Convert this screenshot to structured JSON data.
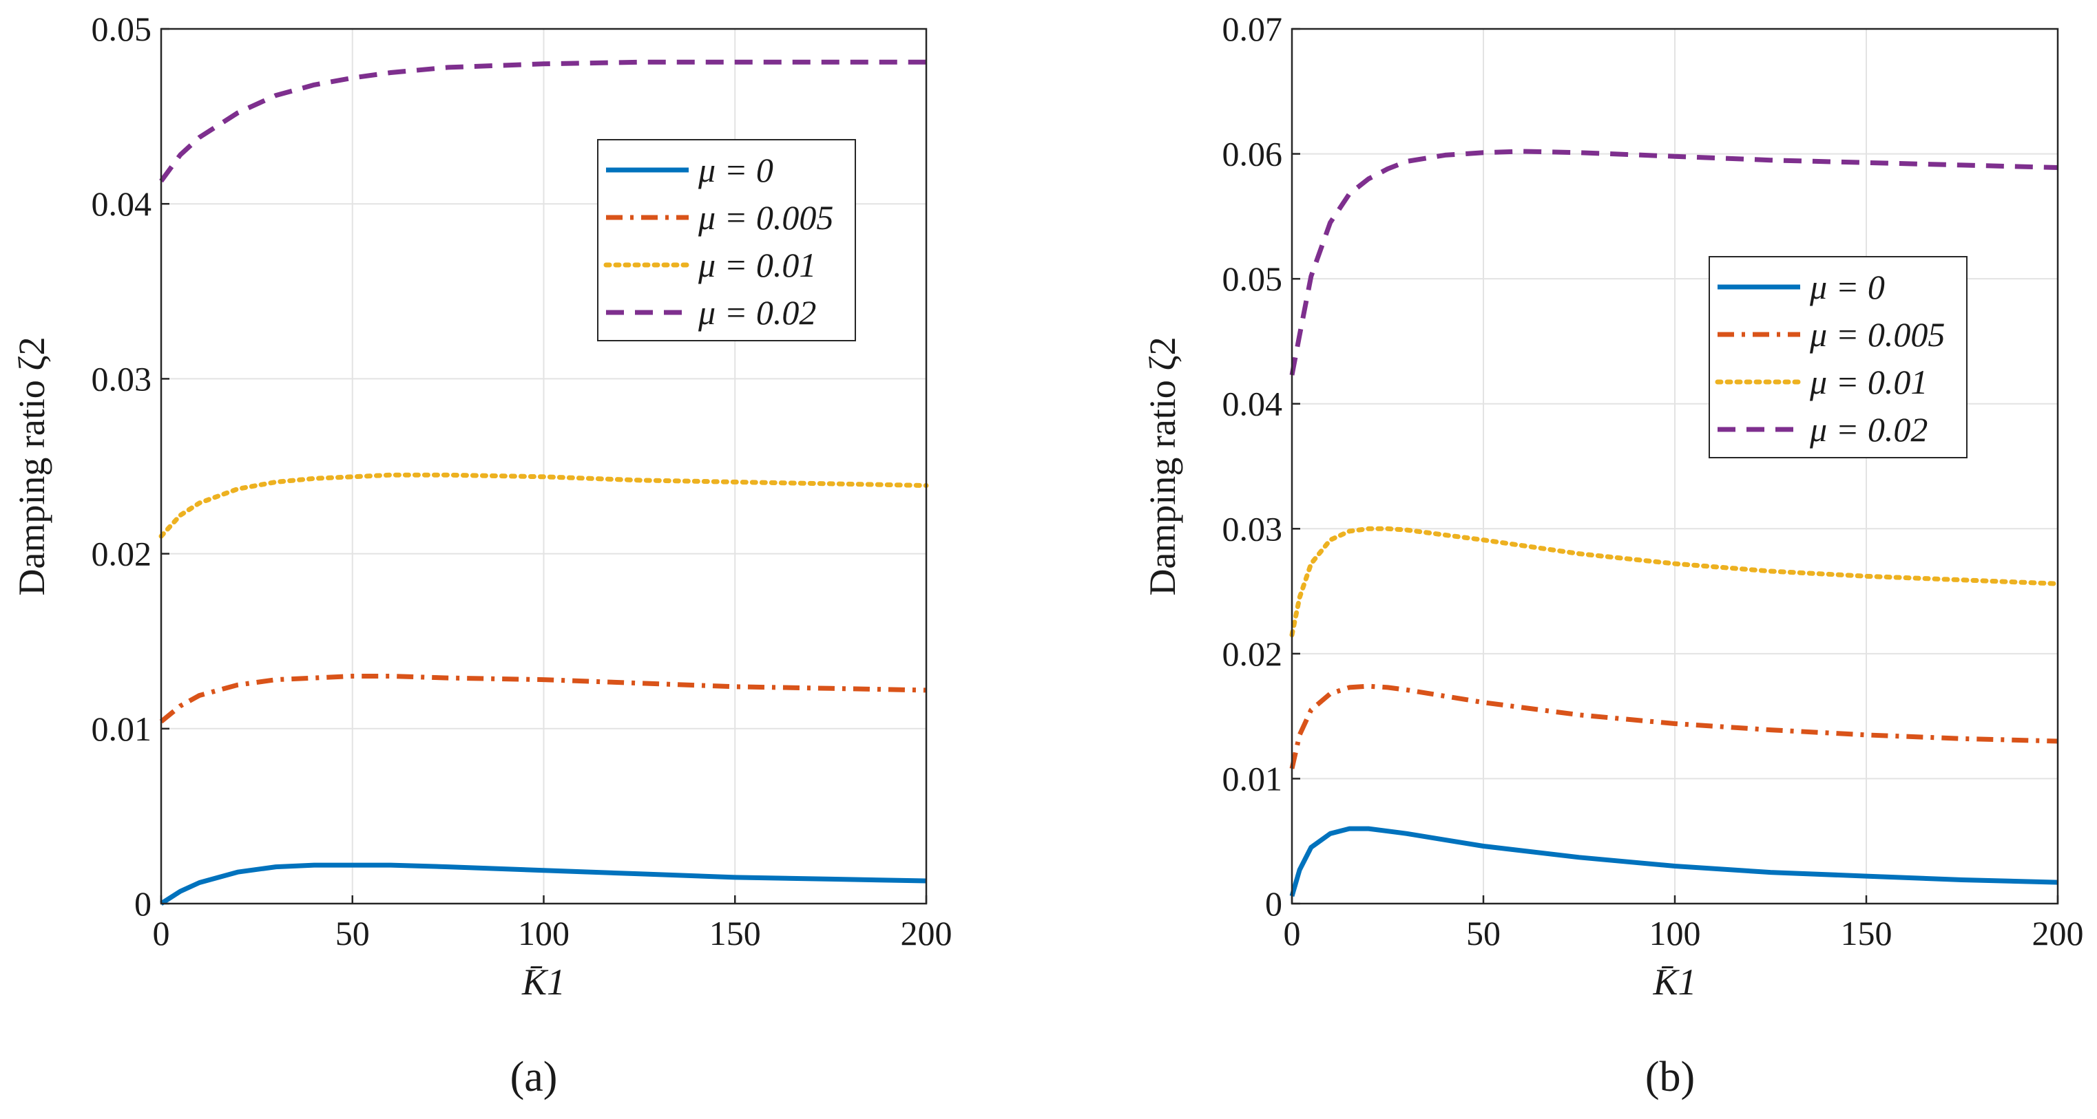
{
  "chart_data": [
    {
      "panel_label": "(a)",
      "type": "line",
      "xlabel": "K̄1",
      "ylabel": "Damping ratio ζ2",
      "xlim": [
        0,
        200
      ],
      "ylim": [
        0,
        0.05
      ],
      "xticks": [
        "0",
        "50",
        "100",
        "150",
        "200"
      ],
      "yticks": [
        "0",
        "0.01",
        "0.02",
        "0.03",
        "0.04",
        "0.05"
      ],
      "grid": true,
      "legend_position": "top-right",
      "series": [
        {
          "name": "μ = 0",
          "color": "#0072bd",
          "style": "solid",
          "x": [
            0,
            5,
            10,
            20,
            30,
            40,
            50,
            60,
            75,
            100,
            125,
            150,
            175,
            200
          ],
          "y": [
            0,
            0.0007,
            0.0012,
            0.0018,
            0.0021,
            0.0022,
            0.0022,
            0.0022,
            0.0021,
            0.0019,
            0.0017,
            0.0015,
            0.0014,
            0.0013
          ]
        },
        {
          "name": "μ = 0.005",
          "color": "#d95319",
          "style": "dashdot",
          "x": [
            0,
            5,
            10,
            20,
            30,
            40,
            50,
            60,
            75,
            100,
            125,
            150,
            175,
            200
          ],
          "y": [
            0.0104,
            0.0113,
            0.0119,
            0.0125,
            0.0128,
            0.0129,
            0.013,
            0.013,
            0.0129,
            0.0128,
            0.0126,
            0.0124,
            0.0123,
            0.0122
          ]
        },
        {
          "name": "μ = 0.01",
          "color": "#edb120",
          "style": "dotted",
          "x": [
            0,
            5,
            10,
            20,
            30,
            40,
            50,
            60,
            75,
            100,
            125,
            150,
            175,
            200
          ],
          "y": [
            0.021,
            0.0222,
            0.0229,
            0.0237,
            0.0241,
            0.0243,
            0.0244,
            0.0245,
            0.0245,
            0.0244,
            0.0242,
            0.0241,
            0.024,
            0.0239
          ]
        },
        {
          "name": "μ = 0.02",
          "color": "#7e2f8e",
          "style": "dashed",
          "x": [
            0,
            5,
            10,
            20,
            30,
            40,
            50,
            60,
            75,
            100,
            125,
            150,
            175,
            200
          ],
          "y": [
            0.0413,
            0.0428,
            0.0438,
            0.0452,
            0.0462,
            0.0468,
            0.0472,
            0.0475,
            0.0478,
            0.048,
            0.0481,
            0.0481,
            0.0481,
            0.0481
          ]
        }
      ]
    },
    {
      "panel_label": "(b)",
      "type": "line",
      "xlabel": "K̄1",
      "ylabel": "Damping ratio ζ2",
      "xlim": [
        0,
        200
      ],
      "ylim": [
        0,
        0.07
      ],
      "xticks": [
        "0",
        "50",
        "100",
        "150",
        "200"
      ],
      "yticks": [
        "0",
        "0.01",
        "0.02",
        "0.03",
        "0.04",
        "0.05",
        "0.06",
        "0.07"
      ],
      "grid": true,
      "legend_position": "center-right",
      "series": [
        {
          "name": "μ = 0",
          "color": "#0072bd",
          "style": "solid",
          "x": [
            0,
            2,
            5,
            10,
            15,
            20,
            25,
            30,
            40,
            50,
            75,
            100,
            125,
            150,
            175,
            200
          ],
          "y": [
            0.0006,
            0.0027,
            0.0045,
            0.0056,
            0.006,
            0.006,
            0.0058,
            0.0056,
            0.0051,
            0.0046,
            0.0037,
            0.003,
            0.0025,
            0.0022,
            0.0019,
            0.0017
          ]
        },
        {
          "name": "μ = 0.005",
          "color": "#d95319",
          "style": "dashdot",
          "x": [
            0,
            2,
            5,
            10,
            15,
            20,
            25,
            30,
            40,
            50,
            75,
            100,
            125,
            150,
            175,
            200
          ],
          "y": [
            0.0108,
            0.0135,
            0.0155,
            0.0168,
            0.0173,
            0.0174,
            0.0173,
            0.0171,
            0.0166,
            0.0161,
            0.0151,
            0.0144,
            0.0139,
            0.0135,
            0.0132,
            0.013
          ]
        },
        {
          "name": "μ = 0.01",
          "color": "#edb120",
          "style": "dotted",
          "x": [
            0,
            2,
            5,
            10,
            15,
            20,
            25,
            30,
            40,
            50,
            75,
            100,
            125,
            150,
            175,
            200
          ],
          "y": [
            0.0215,
            0.0245,
            0.0272,
            0.0291,
            0.0298,
            0.03,
            0.03,
            0.0299,
            0.0295,
            0.0291,
            0.028,
            0.0272,
            0.0266,
            0.0262,
            0.0259,
            0.0256
          ]
        },
        {
          "name": "μ = 0.02",
          "color": "#7e2f8e",
          "style": "dashed",
          "x": [
            0,
            2,
            5,
            10,
            15,
            20,
            25,
            30,
            40,
            50,
            60,
            75,
            100,
            125,
            150,
            175,
            200
          ],
          "y": [
            0.0423,
            0.0455,
            0.0502,
            0.0545,
            0.0568,
            0.058,
            0.0588,
            0.0594,
            0.0599,
            0.0601,
            0.0602,
            0.0601,
            0.0598,
            0.0595,
            0.0593,
            0.0591,
            0.0589
          ]
        }
      ]
    }
  ]
}
